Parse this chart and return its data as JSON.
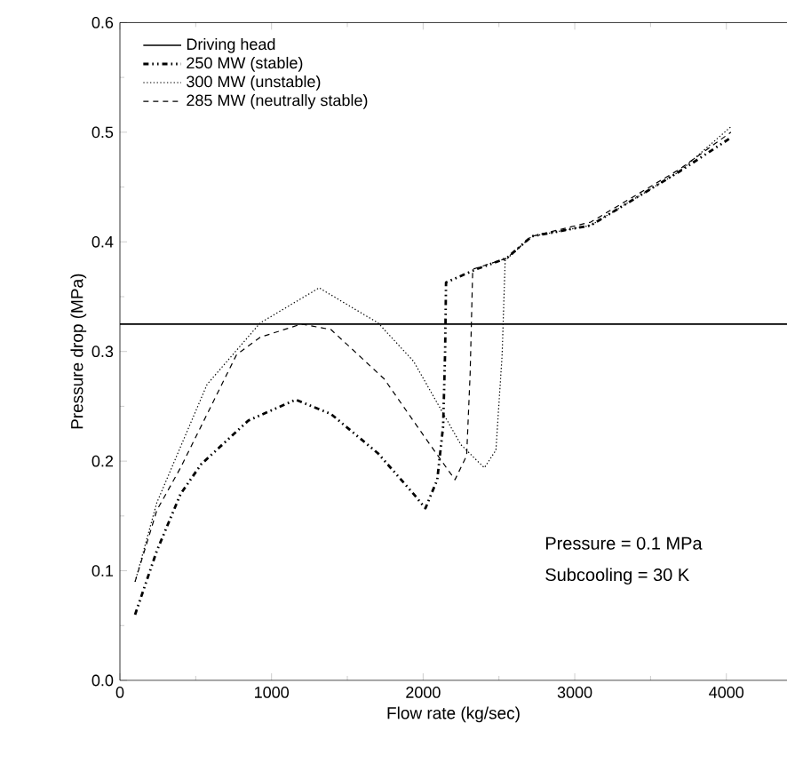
{
  "chart_data": {
    "type": "line",
    "xlabel": "Flow rate (kg/sec)",
    "ylabel": "Pressure drop (MPa)",
    "xlim": [
      0,
      4400
    ],
    "xticks": [
      0,
      1000,
      2000,
      3000,
      4000
    ],
    "ylim": [
      0,
      0.6
    ],
    "yticks": [
      {
        "value": 0,
        "label": "0.0"
      },
      0.1,
      0.2,
      0.3,
      0.4,
      0.5,
      0.6
    ],
    "grid": false,
    "legend": "top left",
    "marker": "none",
    "annotations": [
      "Pressure = 0.1 MPa",
      "Subcooling = 30 K"
    ],
    "series": [
      {
        "name": "Driving head",
        "color": "#000000",
        "line_style": "solid",
        "x": [
          0,
          4400
        ],
        "values": [
          0.325,
          0.325
        ]
      },
      {
        "name": "250 MW (stable)",
        "color": "#000000",
        "line_style": "dashdotdotted",
        "x": [
          100,
          243,
          400,
          535,
          847,
          1159,
          1392,
          1703,
          1937,
          2015,
          2093,
          2132,
          2145,
          2151,
          2350,
          2550,
          2716,
          3105,
          3689,
          4030
        ],
        "values": [
          0.06,
          0.118,
          0.17,
          0.197,
          0.237,
          0.256,
          0.243,
          0.207,
          0.17,
          0.157,
          0.183,
          0.232,
          0.3,
          0.363,
          0.375,
          0.385,
          0.405,
          0.415,
          0.464,
          0.495
        ]
      },
      {
        "name": "300 MW (unstable)",
        "color": "#000000",
        "line_style": "dotted",
        "x": [
          100,
          243,
          458,
          575,
          925,
          1314,
          1703,
          1937,
          2249,
          2366,
          2404,
          2480,
          2521,
          2541,
          2716,
          3105,
          3689,
          4030
        ],
        "values": [
          0.09,
          0.162,
          0.232,
          0.27,
          0.326,
          0.358,
          0.326,
          0.291,
          0.215,
          0.199,
          0.194,
          0.21,
          0.297,
          0.383,
          0.405,
          0.415,
          0.464,
          0.505
        ]
      },
      {
        "name": "285 MW (neutrally stable)",
        "color": "#000000",
        "line_style": "dashed",
        "x": [
          100,
          243,
          400,
          769,
          925,
          1197,
          1392,
          1743,
          2015,
          2210,
          2287,
          2310,
          2327,
          2550,
          2716,
          3105,
          3689,
          4030
        ],
        "values": [
          0.09,
          0.155,
          0.194,
          0.297,
          0.313,
          0.325,
          0.32,
          0.275,
          0.221,
          0.183,
          0.205,
          0.28,
          0.375,
          0.385,
          0.405,
          0.418,
          0.466,
          0.5
        ]
      }
    ]
  }
}
